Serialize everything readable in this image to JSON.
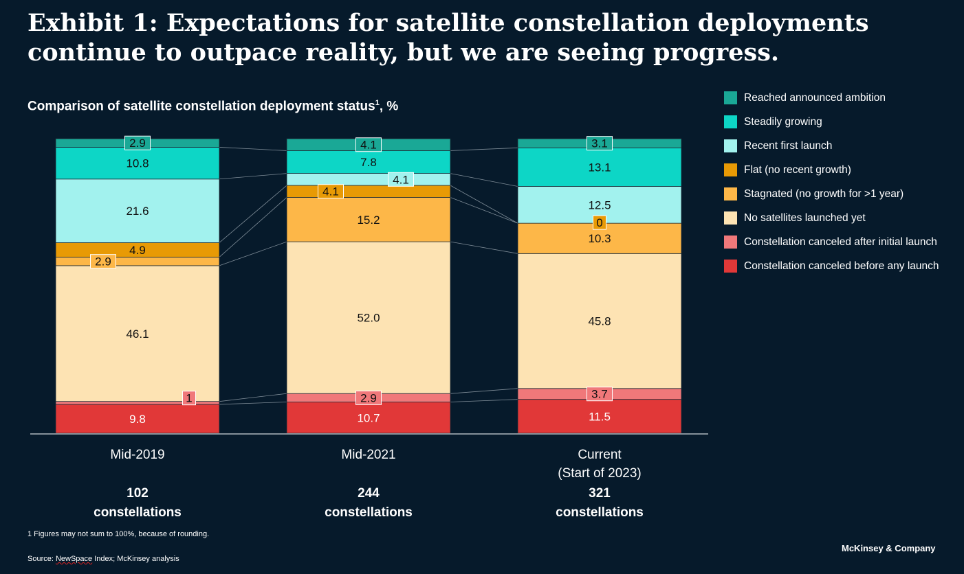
{
  "title": "Exhibit 1: Expectations for satellite constellation deployments continue to outpace reality, but we are seeing progress.",
  "subtitle": {
    "text": "Comparison of satellite constellation deployment status",
    "footnote_ref": "1",
    "suffix": ", %"
  },
  "legend": [
    {
      "label": "Reached announced ambition",
      "color": "#1aa896"
    },
    {
      "label": "Steadily growing",
      "color": "#0dd6c6"
    },
    {
      "label": "Recent first launch",
      "color": "#a2f2ee"
    },
    {
      "label": "Flat (no recent growth)",
      "color": "#e89a05"
    },
    {
      "label": "Stagnated (no growth for >1 year)",
      "color": "#fdb748"
    },
    {
      "label": "No satellites launched yet",
      "color": "#fde3b3"
    },
    {
      "label": "Constellation canceled after initial launch",
      "color": "#f0787a"
    },
    {
      "label": "Constellation canceled before any launch",
      "color": "#e13838"
    }
  ],
  "chart_data": {
    "type": "bar",
    "stacked": true,
    "unit": "%",
    "categories": [
      "Mid-2019",
      "Mid-2021",
      "Current (Start of 2023)"
    ],
    "category_labels": [
      {
        "lines": [
          "Mid-2019"
        ],
        "count": "102",
        "count_unit": "constellations"
      },
      {
        "lines": [
          "Mid-2021"
        ],
        "count": "244",
        "count_unit": "constellations"
      },
      {
        "lines": [
          "Current",
          "(Start of 2023)"
        ],
        "count": "321",
        "count_unit": "constellations"
      }
    ],
    "series": [
      {
        "name": "Constellation canceled before any launch",
        "color": "#e13838",
        "values": [
          9.8,
          10.7,
          11.5
        ],
        "labels": [
          "9.8",
          "10.7",
          "11.5"
        ]
      },
      {
        "name": "Constellation canceled after initial launch",
        "color": "#f0787a",
        "values": [
          1,
          2.9,
          3.7
        ],
        "labels": [
          "1",
          "2.9",
          "3.7"
        ]
      },
      {
        "name": "No satellites launched yet",
        "color": "#fde3b3",
        "values": [
          46.1,
          52.0,
          45.8
        ],
        "labels": [
          "46.1",
          "52.0",
          "45.8"
        ]
      },
      {
        "name": "Stagnated (no growth for >1 year)",
        "color": "#fdb748",
        "values": [
          2.9,
          15.2,
          10.3
        ],
        "labels": [
          "2.9",
          "15.2",
          "10.3"
        ]
      },
      {
        "name": "Flat (no recent growth)",
        "color": "#e89a05",
        "values": [
          4.9,
          4.1,
          0
        ],
        "labels": [
          "4.9",
          "4.1",
          "0"
        ]
      },
      {
        "name": "Recent first launch",
        "color": "#a2f2ee",
        "values": [
          21.6,
          4.1,
          12.5
        ],
        "labels": [
          "21.6",
          "4.1",
          "12.5"
        ]
      },
      {
        "name": "Steadily growing",
        "color": "#0dd6c6",
        "values": [
          10.8,
          7.8,
          13.1
        ],
        "labels": [
          "10.8",
          "7.8",
          "13.1"
        ]
      },
      {
        "name": "Reached announced ambition",
        "color": "#1aa896",
        "values": [
          2.9,
          4.1,
          3.1
        ],
        "labels": [
          "2.9",
          "4.1",
          "3.1"
        ]
      }
    ],
    "ylim": [
      0,
      100
    ],
    "grid": false,
    "legend_position": "right"
  },
  "footnote": "1 Figures may not sum to 100%, because of rounding.",
  "source": {
    "prefix": "Source: ",
    "name": "NewSpace",
    "rest": " Index; McKinsey analysis"
  },
  "brand": "McKinsey & Company"
}
